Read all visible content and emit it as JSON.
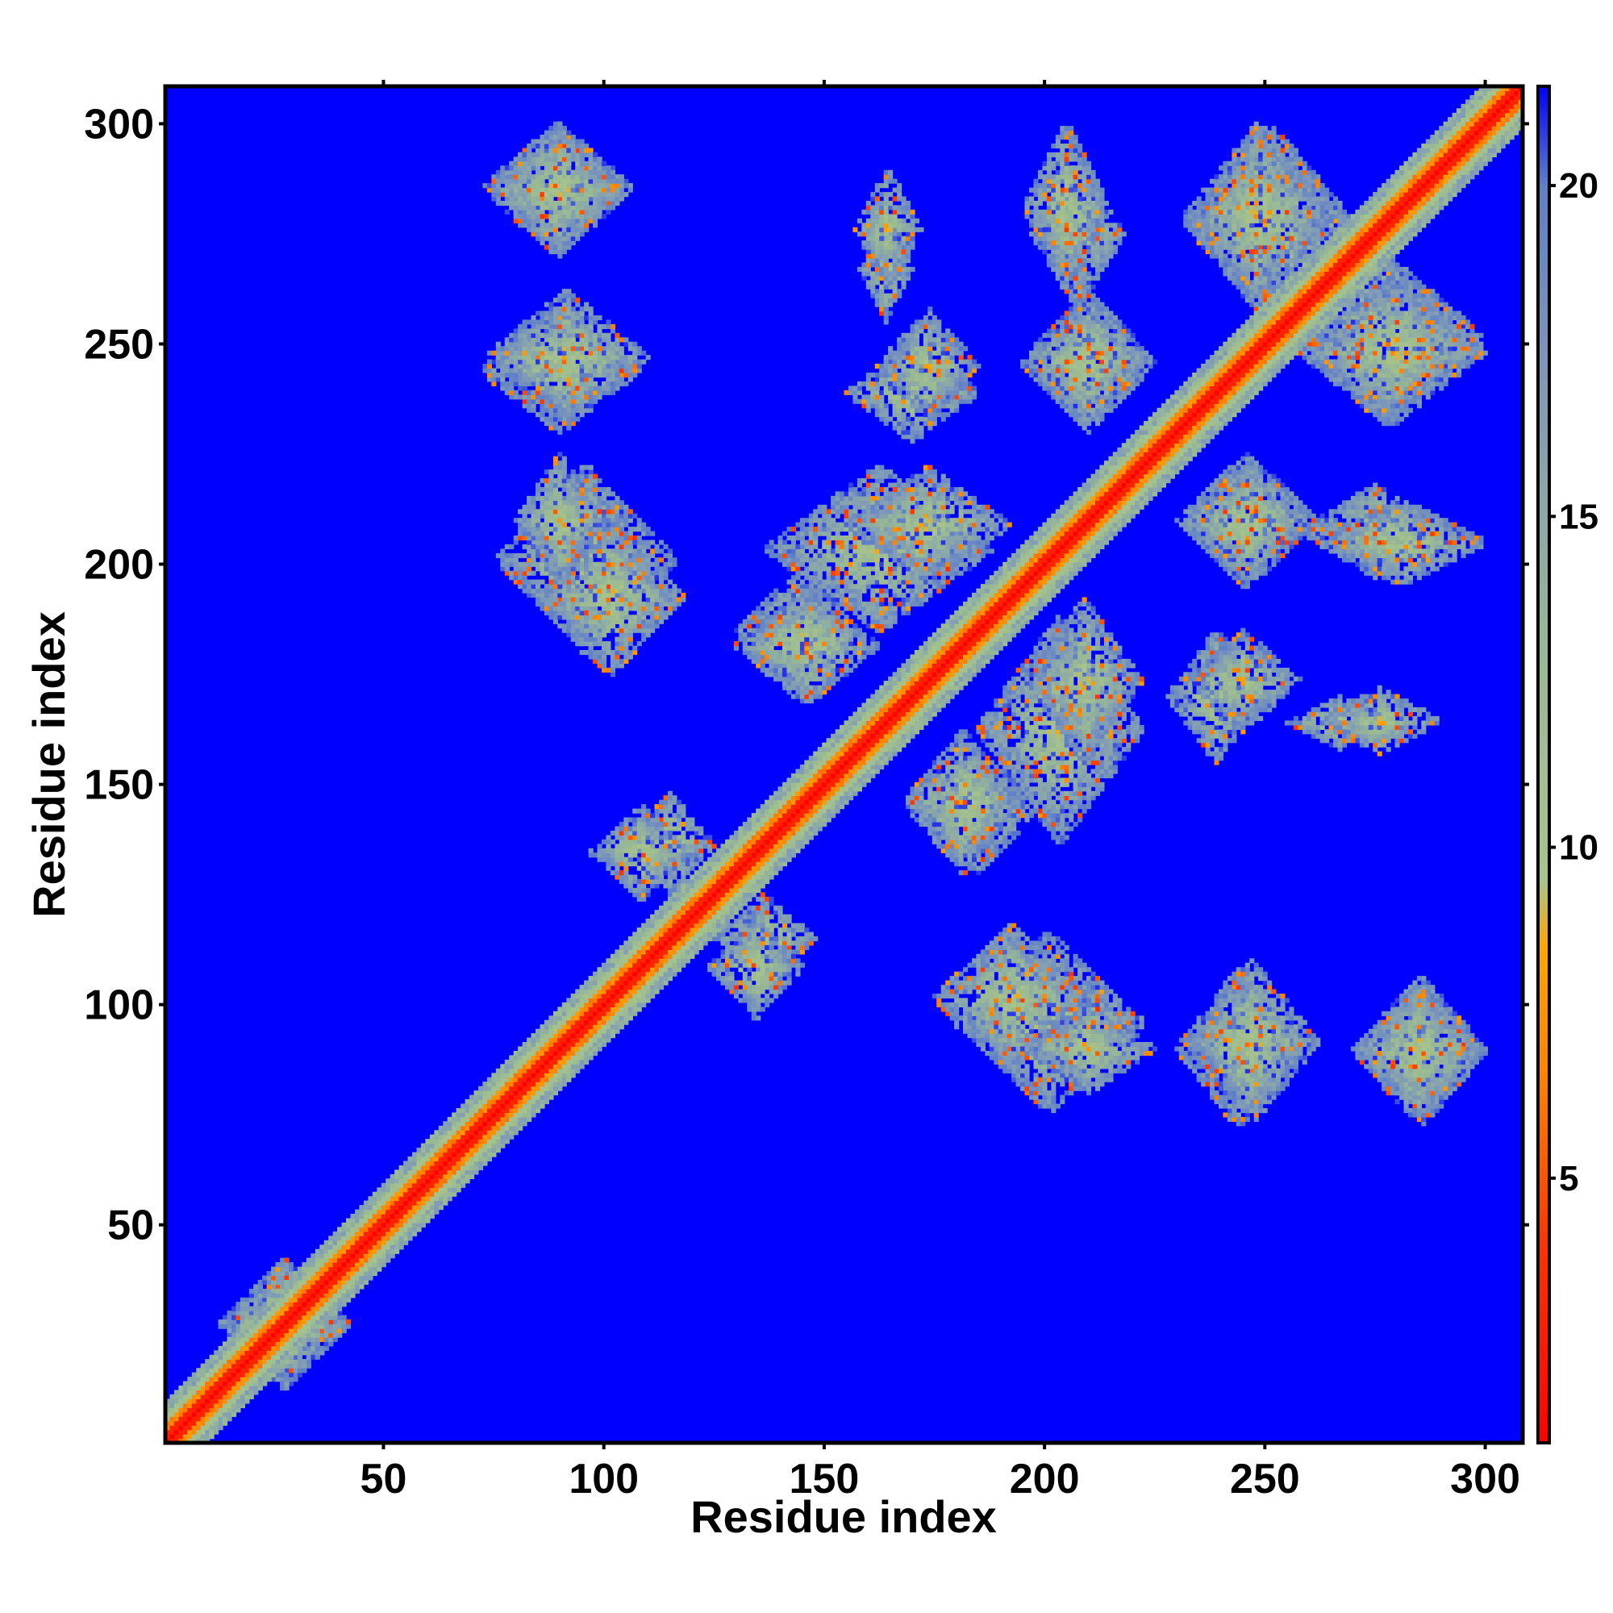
{
  "chart_data": {
    "type": "heatmap",
    "title": "",
    "xlabel": "Residue index",
    "ylabel": "Residue index",
    "xlim": [
      1,
      308
    ],
    "ylim": [
      1,
      308
    ],
    "xticks": [
      50,
      100,
      150,
      200,
      250,
      300
    ],
    "yticks": [
      50,
      100,
      150,
      200,
      250,
      300
    ],
    "colorbar": {
      "ticks": [
        5,
        10,
        15,
        20
      ],
      "range": [
        1,
        21.5
      ],
      "stops": [
        {
          "value": 1,
          "color": "#ff0000"
        },
        {
          "value": 4,
          "color": "#ff3300"
        },
        {
          "value": 6.5,
          "color": "#ff8000"
        },
        {
          "value": 8.5,
          "color": "#ffa500"
        },
        {
          "value": 9.5,
          "color": "#a8c48a"
        },
        {
          "value": 13,
          "color": "#98b896"
        },
        {
          "value": 17,
          "color": "#7f9ab8"
        },
        {
          "value": 20,
          "color": "#5f7fc8"
        },
        {
          "value": 21.5,
          "color": "#0000ff"
        }
      ]
    },
    "background_value": 21.5,
    "diagonal": {
      "from": 1,
      "to": 308,
      "value": 1
    },
    "contact_regions": [
      {
        "x_range": [
          73,
          106
        ],
        "y_range": [
          272,
          300
        ]
      },
      {
        "x_range": [
          72,
          108
        ],
        "y_range": [
          230,
          258
        ]
      },
      {
        "x_range": [
          76,
          116
        ],
        "y_range": [
          180,
          222
        ]
      },
      {
        "x_range": [
          158,
          170
        ],
        "y_range": [
          255,
          280
        ]
      },
      {
        "x_range": [
          155,
          185
        ],
        "y_range": [
          228,
          250
        ]
      },
      {
        "x_range": [
          197,
          218
        ],
        "y_range": [
          258,
          292
        ]
      },
      {
        "x_range": [
          195,
          222
        ],
        "y_range": [
          232,
          258
        ]
      },
      {
        "x_range": [
          232,
          270
        ],
        "y_range": [
          255,
          300
        ]
      },
      {
        "x_range": [
          258,
          300
        ],
        "y_range": [
          232,
          265
        ]
      },
      {
        "x_range": [
          137,
          188
        ],
        "y_range": [
          185,
          222
        ]
      },
      {
        "x_range": [
          130,
          158
        ],
        "y_range": [
          172,
          198
        ]
      },
      {
        "x_range": [
          196,
          222
        ],
        "y_range": [
          155,
          192
        ]
      },
      {
        "x_range": [
          168,
          195
        ],
        "y_range": [
          130,
          162
        ]
      },
      {
        "x_range": [
          230,
          262
        ],
        "y_range": [
          195,
          225
        ]
      },
      {
        "x_range": [
          262,
          300
        ],
        "y_range": [
          195,
          215
        ]
      },
      {
        "x_range": [
          232,
          258
        ],
        "y_range": [
          162,
          185
        ]
      },
      {
        "x_range": [
          262,
          290
        ],
        "y_range": [
          157,
          172
        ]
      },
      {
        "x_range": [
          105,
          125
        ],
        "y_range": [
          125,
          148
        ]
      },
      {
        "x_range": [
          124,
          145
        ],
        "y_range": [
          97,
          120
        ]
      },
      {
        "x_range": [
          175,
          210
        ],
        "y_range": [
          85,
          118
        ]
      },
      {
        "x_range": [
          195,
          225
        ],
        "y_range": [
          80,
          100
        ]
      },
      {
        "x_range": [
          232,
          262
        ],
        "y_range": [
          73,
          110
        ]
      },
      {
        "x_range": [
          270,
          300
        ],
        "y_range": [
          73,
          106
        ]
      },
      {
        "x_range": [
          13,
          42
        ],
        "y_range": [
          13,
          42
        ]
      }
    ]
  }
}
